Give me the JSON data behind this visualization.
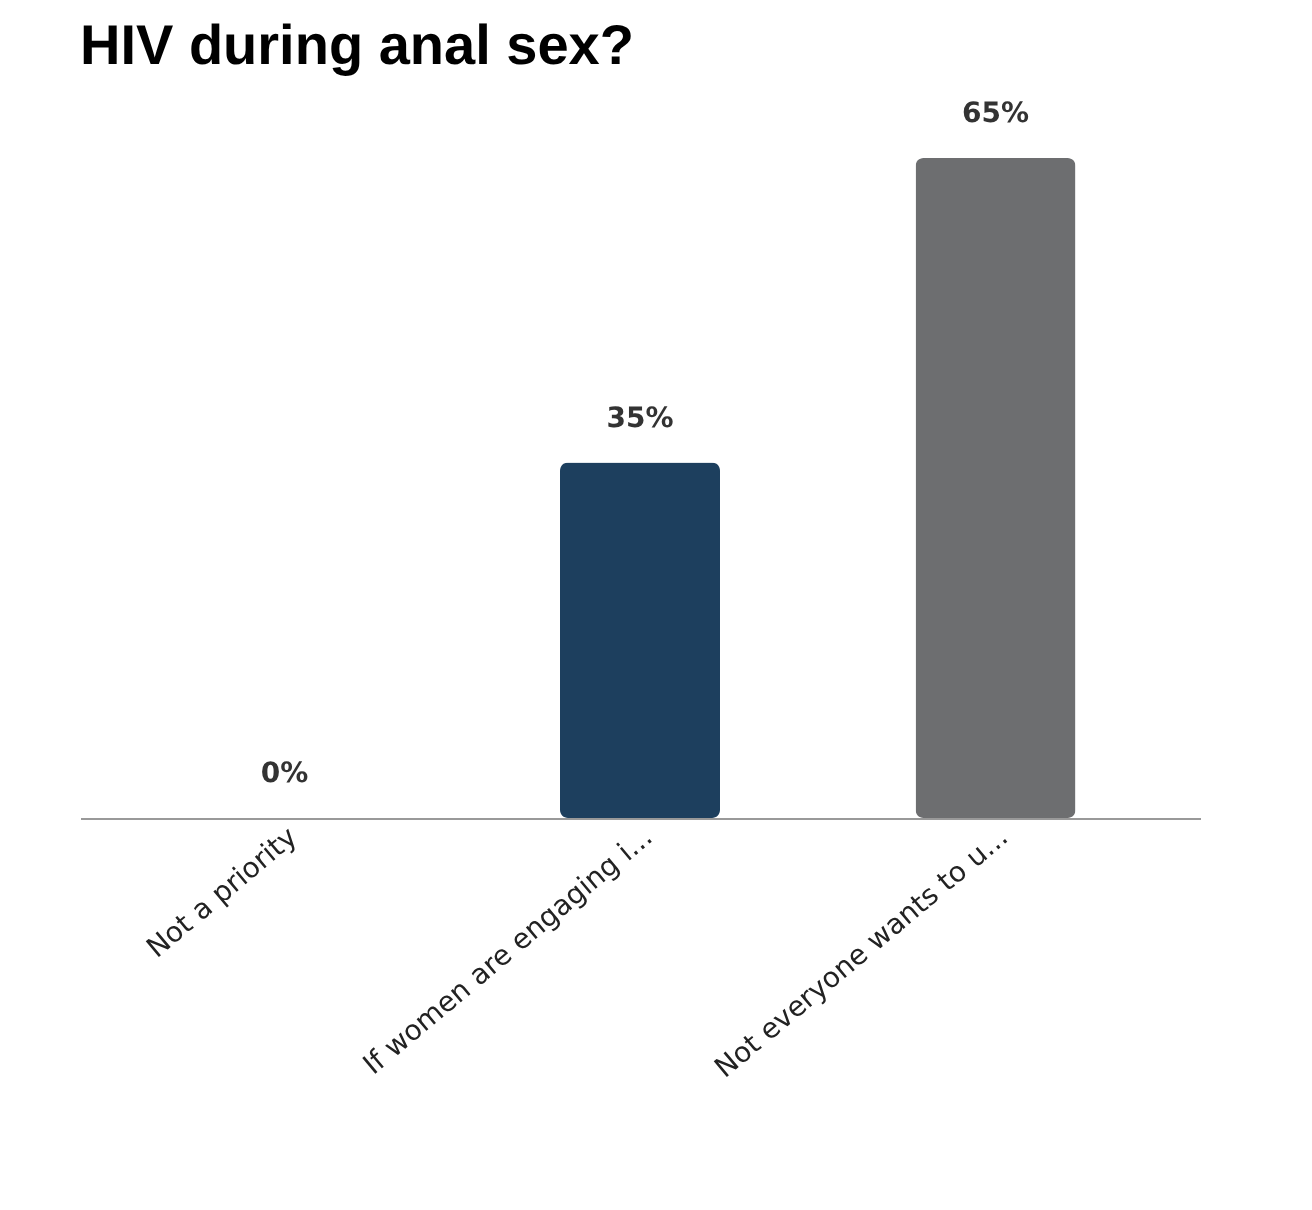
{
  "chart_data": {
    "type": "bar",
    "title": "HIV during anal sex?",
    "categories": [
      "Not a priority",
      "If women are engaging i...",
      "Not everyone wants to u..."
    ],
    "values": [
      0,
      35,
      65
    ],
    "colors": [
      "#6abf45",
      "#1d3f5e",
      "#6d6e70"
    ],
    "value_labels": [
      "0%",
      "35%",
      "65%"
    ]
  }
}
